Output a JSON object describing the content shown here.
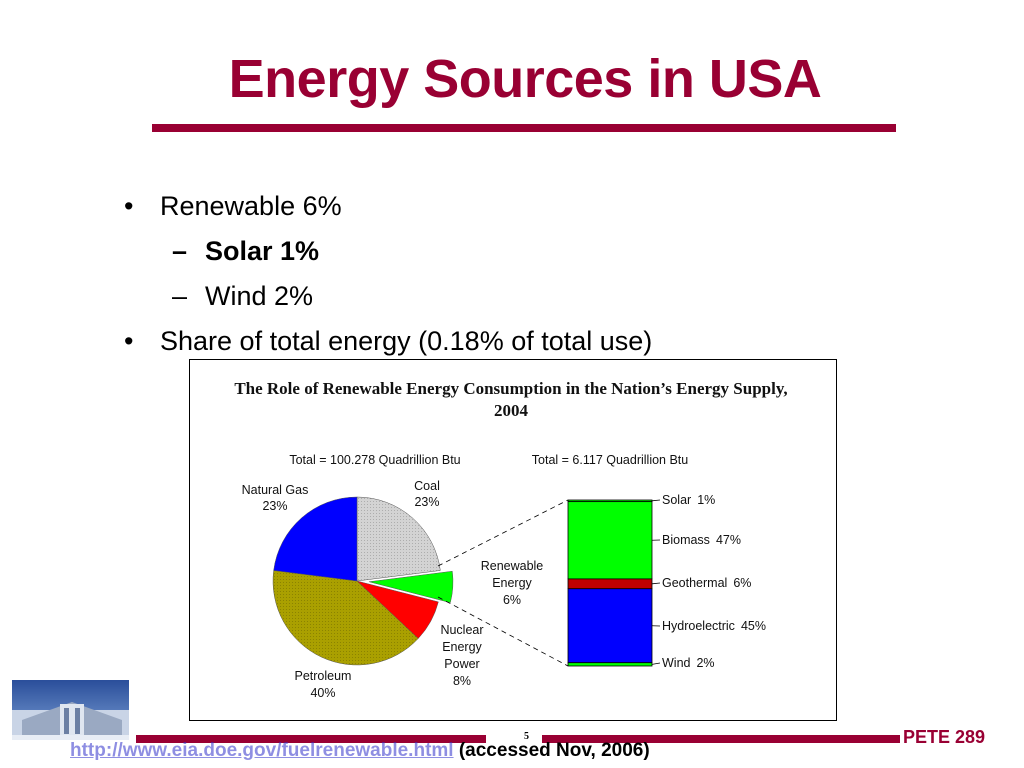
{
  "slide": {
    "title": "Energy Sources in USA",
    "bullets": [
      {
        "text": "Renewable 6%"
      },
      {
        "text": "Solar 1%"
      },
      {
        "text": "Wind 2%"
      },
      {
        "text": "Share of total energy (0.18% of total use)"
      }
    ],
    "footer": {
      "page_number": "5",
      "url": "http://www.eia.doe.gov/fuelrenewable.html",
      "url_note": "(accessed Nov, 2006)",
      "course": "PETE 289"
    },
    "colors": {
      "accent": "#990033",
      "natural_gas": "#0000ff",
      "coal": "#d3d3d3",
      "renewable": "#00ff00",
      "nuclear": "#ff0000",
      "petroleum": "#aaa000",
      "solar": "#00ff00",
      "biomass": "#00ff00",
      "geothermal": "#c00000",
      "hydroelectric": "#0000ff",
      "wind": "#00ff00"
    }
  },
  "chart_data": [
    {
      "type": "pie",
      "title_line1": "The Role of Renewable Energy Consumption in the Nation’s Energy Supply,",
      "title_line2": "2004",
      "total_label": "Total = 100.278 Quadrillion Btu",
      "slices": [
        {
          "label": "Coal",
          "pct_label": "23%",
          "value": 23
        },
        {
          "label_lines": [
            "Renewable",
            "Energy"
          ],
          "pct_label": "6%",
          "value": 6
        },
        {
          "label_lines": [
            "Nuclear",
            "Energy",
            "Power"
          ],
          "pct_label": "8%",
          "value": 8
        },
        {
          "label": "Petroleum",
          "pct_label": "40%",
          "value": 40
        },
        {
          "label": "Natural Gas",
          "pct_label": "23%",
          "value": 23
        }
      ]
    },
    {
      "type": "bar",
      "stacked": true,
      "total_label": "Total = 6.117 Quadrillion Btu",
      "segments": [
        {
          "label": "Solar",
          "pct_label": "1%",
          "value": 1
        },
        {
          "label": "Biomass",
          "pct_label": "47%",
          "value": 47
        },
        {
          "label": "Geothermal",
          "pct_label": "6%",
          "value": 6
        },
        {
          "label": "Hydroelectric",
          "pct_label": "45%",
          "value": 45
        },
        {
          "label": "Wind",
          "pct_label": "2%",
          "value": 2
        }
      ]
    }
  ]
}
